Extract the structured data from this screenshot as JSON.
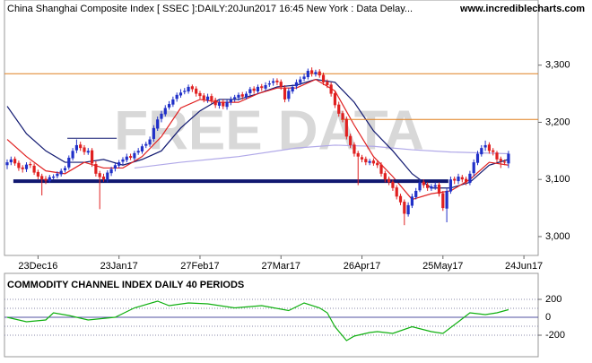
{
  "chart_data": [
    {
      "type": "candlestick",
      "title": "China Shanghai Composite Index [ SSEC ]:DAILY:20Jun2017 16:45 New York : Data Delay...",
      "source": "www.incrediblecharts.com",
      "watermark": "FREE DATA",
      "up_color": "#2030c8",
      "down_color": "#e02020",
      "open": [
        3125,
        3130,
        3136,
        3129,
        3121,
        3118,
        3127,
        3124,
        3113,
        3106,
        3101,
        3097,
        3103,
        3106,
        3109,
        3116,
        3121,
        3137,
        3151,
        3161,
        3156,
        3147,
        3151,
        3127,
        3111,
        3105,
        3099,
        3111,
        3119,
        3124,
        3131,
        3134,
        3141,
        3137,
        3147,
        3149,
        3159,
        3161,
        3171,
        3189,
        3206,
        3214,
        3226,
        3231,
        3241,
        3247,
        3253,
        3254,
        3263,
        3259,
        3251,
        3247,
        3239,
        3246,
        3239,
        3229,
        3236,
        3227,
        3235,
        3241,
        3243,
        3249,
        3244,
        3251,
        3259,
        3254,
        3263,
        3259,
        3266,
        3269,
        3273,
        3271,
        3261,
        3241,
        3254,
        3263,
        3269,
        3276,
        3279,
        3291,
        3284,
        3289,
        3283,
        3271,
        3266,
        3251,
        3231,
        3216,
        3206,
        3176,
        3161,
        3146,
        3139,
        3136,
        3129,
        3133,
        3129,
        3126,
        3111,
        3101,
        3096,
        3086,
        3071,
        3061,
        3039,
        3054,
        3069,
        3081,
        3096,
        3091,
        3084,
        3087,
        3091,
        3076,
        3049,
        3079,
        3101,
        3097,
        3104,
        3101,
        3094,
        3111,
        3129,
        3144,
        3156,
        3161,
        3151,
        3147,
        3136,
        3131,
        3128
      ],
      "high": [
        3135,
        3140,
        3140,
        3133,
        3125,
        3130,
        3131,
        3128,
        3117,
        3110,
        3106,
        3108,
        3109,
        3114,
        3119,
        3124,
        3142,
        3155,
        3170,
        3166,
        3160,
        3155,
        3155,
        3132,
        3115,
        3110,
        3116,
        3122,
        3129,
        3134,
        3139,
        3145,
        3145,
        3150,
        3155,
        3162,
        3166,
        3175,
        3195,
        3210,
        3220,
        3230,
        3237,
        3245,
        3252,
        3258,
        3260,
        3266,
        3266,
        3263,
        3255,
        3251,
        3250,
        3250,
        3243,
        3240,
        3240,
        3240,
        3245,
        3248,
        3252,
        3253,
        3254,
        3262,
        3263,
        3266,
        3267,
        3270,
        3273,
        3277,
        3277,
        3275,
        3265,
        3260,
        3266,
        3275,
        3280,
        3285,
        3294,
        3296,
        3292,
        3293,
        3287,
        3275,
        3270,
        3255,
        3236,
        3220,
        3210,
        3180,
        3165,
        3150,
        3143,
        3140,
        3136,
        3137,
        3134,
        3130,
        3115,
        3105,
        3100,
        3090,
        3075,
        3065,
        3060,
        3075,
        3085,
        3100,
        3100,
        3095,
        3092,
        3095,
        3095,
        3080,
        3085,
        3105,
        3105,
        3110,
        3108,
        3105,
        3115,
        3135,
        3150,
        3160,
        3168,
        3165,
        3155,
        3150,
        3140,
        3135,
        3150
      ],
      "low": [
        3118,
        3125,
        3124,
        3115,
        3112,
        3113,
        3120,
        3108,
        3100,
        3072,
        3092,
        3094,
        3100,
        3102,
        3105,
        3112,
        3117,
        3133,
        3146,
        3150,
        3143,
        3143,
        3122,
        3105,
        3048,
        3096,
        3095,
        3106,
        3114,
        3120,
        3126,
        3130,
        3134,
        3133,
        3143,
        3145,
        3155,
        3157,
        3166,
        3185,
        3200,
        3210,
        3222,
        3227,
        3236,
        3243,
        3249,
        3250,
        3253,
        3245,
        3241,
        3235,
        3234,
        3233,
        3225,
        3224,
        3223,
        3222,
        3230,
        3236,
        3238,
        3240,
        3240,
        3246,
        3250,
        3250,
        3255,
        3255,
        3262,
        3264,
        3265,
        3257,
        3235,
        3236,
        3250,
        3258,
        3265,
        3272,
        3275,
        3280,
        3280,
        3278,
        3265,
        3260,
        3245,
        3225,
        3210,
        3200,
        3170,
        3155,
        3140,
        3090,
        3130,
        3125,
        3125,
        3124,
        3120,
        3105,
        3095,
        3090,
        3080,
        3065,
        3055,
        3020,
        3035,
        3050,
        3065,
        3078,
        3085,
        3080,
        3080,
        3082,
        3070,
        3045,
        3025,
        3075,
        3092,
        3092,
        3095,
        3090,
        3090,
        3105,
        3125,
        3140,
        3150,
        3145,
        3142,
        3130,
        3120,
        3125,
        3120
      ],
      "close": [
        3130,
        3135,
        3128,
        3120,
        3118,
        3126,
        3125,
        3112,
        3105,
        3100,
        3098,
        3104,
        3105,
        3110,
        3115,
        3120,
        3138,
        3150,
        3160,
        3155,
        3148,
        3150,
        3128,
        3110,
        3104,
        3100,
        3112,
        3118,
        3125,
        3130,
        3135,
        3140,
        3138,
        3146,
        3150,
        3158,
        3162,
        3170,
        3190,
        3205,
        3215,
        3225,
        3232,
        3240,
        3248,
        3252,
        3255,
        3262,
        3258,
        3250,
        3246,
        3240,
        3245,
        3238,
        3230,
        3235,
        3228,
        3236,
        3240,
        3244,
        3248,
        3245,
        3250,
        3258,
        3255,
        3262,
        3260,
        3265,
        3268,
        3272,
        3270,
        3262,
        3240,
        3255,
        3262,
        3270,
        3275,
        3280,
        3290,
        3285,
        3288,
        3282,
        3270,
        3265,
        3250,
        3230,
        3215,
        3205,
        3175,
        3160,
        3145,
        3140,
        3135,
        3130,
        3132,
        3128,
        3125,
        3110,
        3100,
        3095,
        3085,
        3070,
        3060,
        3040,
        3055,
        3070,
        3080,
        3095,
        3090,
        3085,
        3088,
        3090,
        3075,
        3050,
        3080,
        3100,
        3098,
        3105,
        3100,
        3095,
        3110,
        3130,
        3145,
        3155,
        3160,
        3150,
        3148,
        3135,
        3132,
        3130,
        3145
      ],
      "overlays": [
        {
          "color": "#b0a8e8",
          "x": [
            33,
            45,
            60,
            75,
            85,
            95,
            105,
            115,
            130
          ],
          "values": [
            3120,
            3130,
            3140,
            3155,
            3160,
            3158,
            3152,
            3148,
            3145
          ]
        },
        {
          "color": "#101870",
          "x": [
            0,
            5,
            10,
            15,
            20,
            25,
            30,
            35,
            40,
            45,
            50,
            55,
            60,
            65,
            70,
            75,
            80,
            85,
            90,
            95,
            100,
            105,
            110,
            115,
            120,
            125,
            130
          ],
          "values": [
            3228,
            3180,
            3150,
            3130,
            3130,
            3135,
            3125,
            3135,
            3150,
            3190,
            3220,
            3240,
            3240,
            3250,
            3262,
            3265,
            3275,
            3270,
            3235,
            3185,
            3150,
            3110,
            3085,
            3085,
            3095,
            3125,
            3135
          ]
        },
        {
          "color": "#e02020",
          "x": [
            0,
            5,
            10,
            15,
            20,
            25,
            30,
            35,
            40,
            45,
            50,
            55,
            60,
            65,
            70,
            75,
            80,
            85,
            90,
            95,
            100,
            105,
            110,
            115,
            120,
            125,
            130
          ],
          "values": [
            3170,
            3140,
            3115,
            3110,
            3130,
            3120,
            3120,
            3140,
            3175,
            3225,
            3240,
            3235,
            3235,
            3250,
            3260,
            3260,
            3275,
            3255,
            3195,
            3140,
            3105,
            3065,
            3075,
            3080,
            3100,
            3130,
            3125
          ]
        }
      ],
      "hlines": [
        {
          "value": 3285,
          "x": [
            -0.7,
            137.7
          ],
          "color": "#e08020",
          "width": 1
        },
        {
          "value": 3205,
          "x": [
            86.5,
            137.7
          ],
          "color": "#e08020",
          "width": 1
        },
        {
          "value": 3172,
          "x": [
            15.6,
            28.4
          ],
          "color": "#101870",
          "width": 1
        },
        {
          "value": 3097,
          "x": [
            1.6,
            114.4
          ],
          "color": "#101870",
          "width": 4
        }
      ],
      "xlim": [
        -0.7,
        137.7
      ],
      "xticks": [
        {
          "value": 8,
          "label": "23Dec16"
        },
        {
          "value": 29,
          "label": "23Jan17"
        },
        {
          "value": 50,
          "label": "27Feb17"
        },
        {
          "value": 71,
          "label": "27Mar17"
        },
        {
          "value": 92,
          "label": "26Apr17"
        },
        {
          "value": 113,
          "label": "25May17"
        },
        {
          "value": 134,
          "label": "24Jun17"
        }
      ],
      "ylim": [
        2967,
        3414
      ],
      "yticks": [
        {
          "value": 3000,
          "label": "3,000"
        },
        {
          "value": 3100,
          "label": "3,100"
        },
        {
          "value": 3200,
          "label": "3,200"
        },
        {
          "value": 3300,
          "label": "3,300"
        }
      ]
    },
    {
      "type": "line",
      "title": "COMMODITY CHANNEL INDEX DAILY 40 PERIODS",
      "color": "#10b010",
      "x": [
        0,
        5,
        10,
        12,
        16,
        21,
        28,
        33,
        39,
        42,
        47,
        52,
        59,
        66,
        73,
        77,
        81,
        83,
        85,
        88,
        90,
        94,
        96,
        100,
        105,
        110,
        113,
        117,
        120,
        124,
        127,
        130
      ],
      "values": [
        0,
        -50,
        -30,
        50,
        20,
        -30,
        0,
        105,
        180,
        130,
        160,
        150,
        105,
        130,
        75,
        160,
        105,
        50,
        -105,
        -260,
        -210,
        -170,
        -160,
        -180,
        -105,
        -160,
        -180,
        -50,
        50,
        30,
        50,
        85
      ],
      "xlim": [
        -0.7,
        137.7
      ],
      "ylim": [
        -440,
        490
      ],
      "yticks": [
        -200,
        0,
        200
      ],
      "guides": [
        -200,
        -100,
        100,
        200
      ],
      "zero_color": "#5050a0"
    }
  ]
}
